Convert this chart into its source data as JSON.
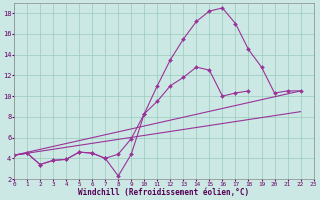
{
  "background_color": "#cce8e4",
  "grid_color": "#99ccbb",
  "line_color": "#993399",
  "xlim": [
    0,
    23
  ],
  "ylim": [
    2,
    19
  ],
  "yticks": [
    2,
    4,
    6,
    8,
    10,
    12,
    14,
    16,
    18
  ],
  "xticks": [
    0,
    1,
    2,
    3,
    4,
    5,
    6,
    7,
    8,
    9,
    10,
    11,
    12,
    13,
    14,
    15,
    16,
    17,
    18,
    19,
    20,
    21,
    22,
    23
  ],
  "xlabel": "Windchill (Refroidissement éolien,°C)",
  "series": [
    {
      "x": [
        0,
        1,
        2,
        3,
        4,
        5,
        6,
        7,
        8,
        9,
        10,
        11,
        12,
        13,
        14,
        15,
        16,
        17,
        18,
        19,
        20,
        21,
        22
      ],
      "y": [
        4.3,
        4.5,
        3.4,
        3.8,
        3.9,
        4.6,
        4.5,
        4.0,
        2.3,
        4.4,
        8.3,
        11.0,
        13.5,
        15.5,
        17.2,
        18.2,
        18.5,
        17.0,
        14.5,
        12.8,
        10.3,
        10.5,
        10.5
      ]
    },
    {
      "x": [
        0,
        1,
        2,
        3,
        4,
        5,
        6,
        7,
        8,
        9,
        10,
        11,
        12,
        13,
        14,
        15,
        16,
        17,
        18,
        19,
        20,
        21,
        22
      ],
      "y": [
        4.3,
        4.5,
        3.4,
        3.8,
        3.9,
        4.6,
        4.5,
        4.0,
        4.4,
        5.9,
        8.3,
        9.5,
        11.0,
        11.8,
        12.8,
        12.5,
        10.0,
        10.3,
        10.5,
        null,
        null,
        null,
        null
      ]
    },
    {
      "x": [
        0,
        22
      ],
      "y": [
        4.3,
        10.5
      ]
    },
    {
      "x": [
        0,
        22
      ],
      "y": [
        4.3,
        8.5
      ]
    }
  ]
}
